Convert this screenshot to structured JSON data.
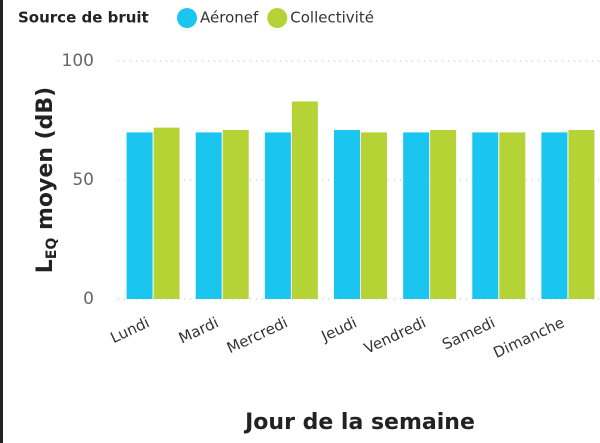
{
  "chart_data": {
    "type": "bar",
    "legend_title": "Source de bruit",
    "x_label": "Jour de la semaine",
    "y_label": {
      "main": "L",
      "sub": "EQ",
      "rest": " moyen (dB)"
    },
    "categories": [
      "Lundi",
      "Mardi",
      "Mercredi",
      "Jeudi",
      "Vendredi",
      "Samedi",
      "Dimanche"
    ],
    "series": [
      {
        "name": "Aéronef",
        "color": "#1ac6f0",
        "values": [
          70,
          70,
          70,
          71,
          70,
          70,
          70
        ]
      },
      {
        "name": "Collectivité",
        "color": "#b5d334",
        "values": [
          72,
          71,
          83,
          70,
          71,
          70,
          71
        ]
      }
    ],
    "ylim": [
      0,
      100
    ],
    "yticks": [
      0,
      50,
      100
    ],
    "grid": true
  }
}
